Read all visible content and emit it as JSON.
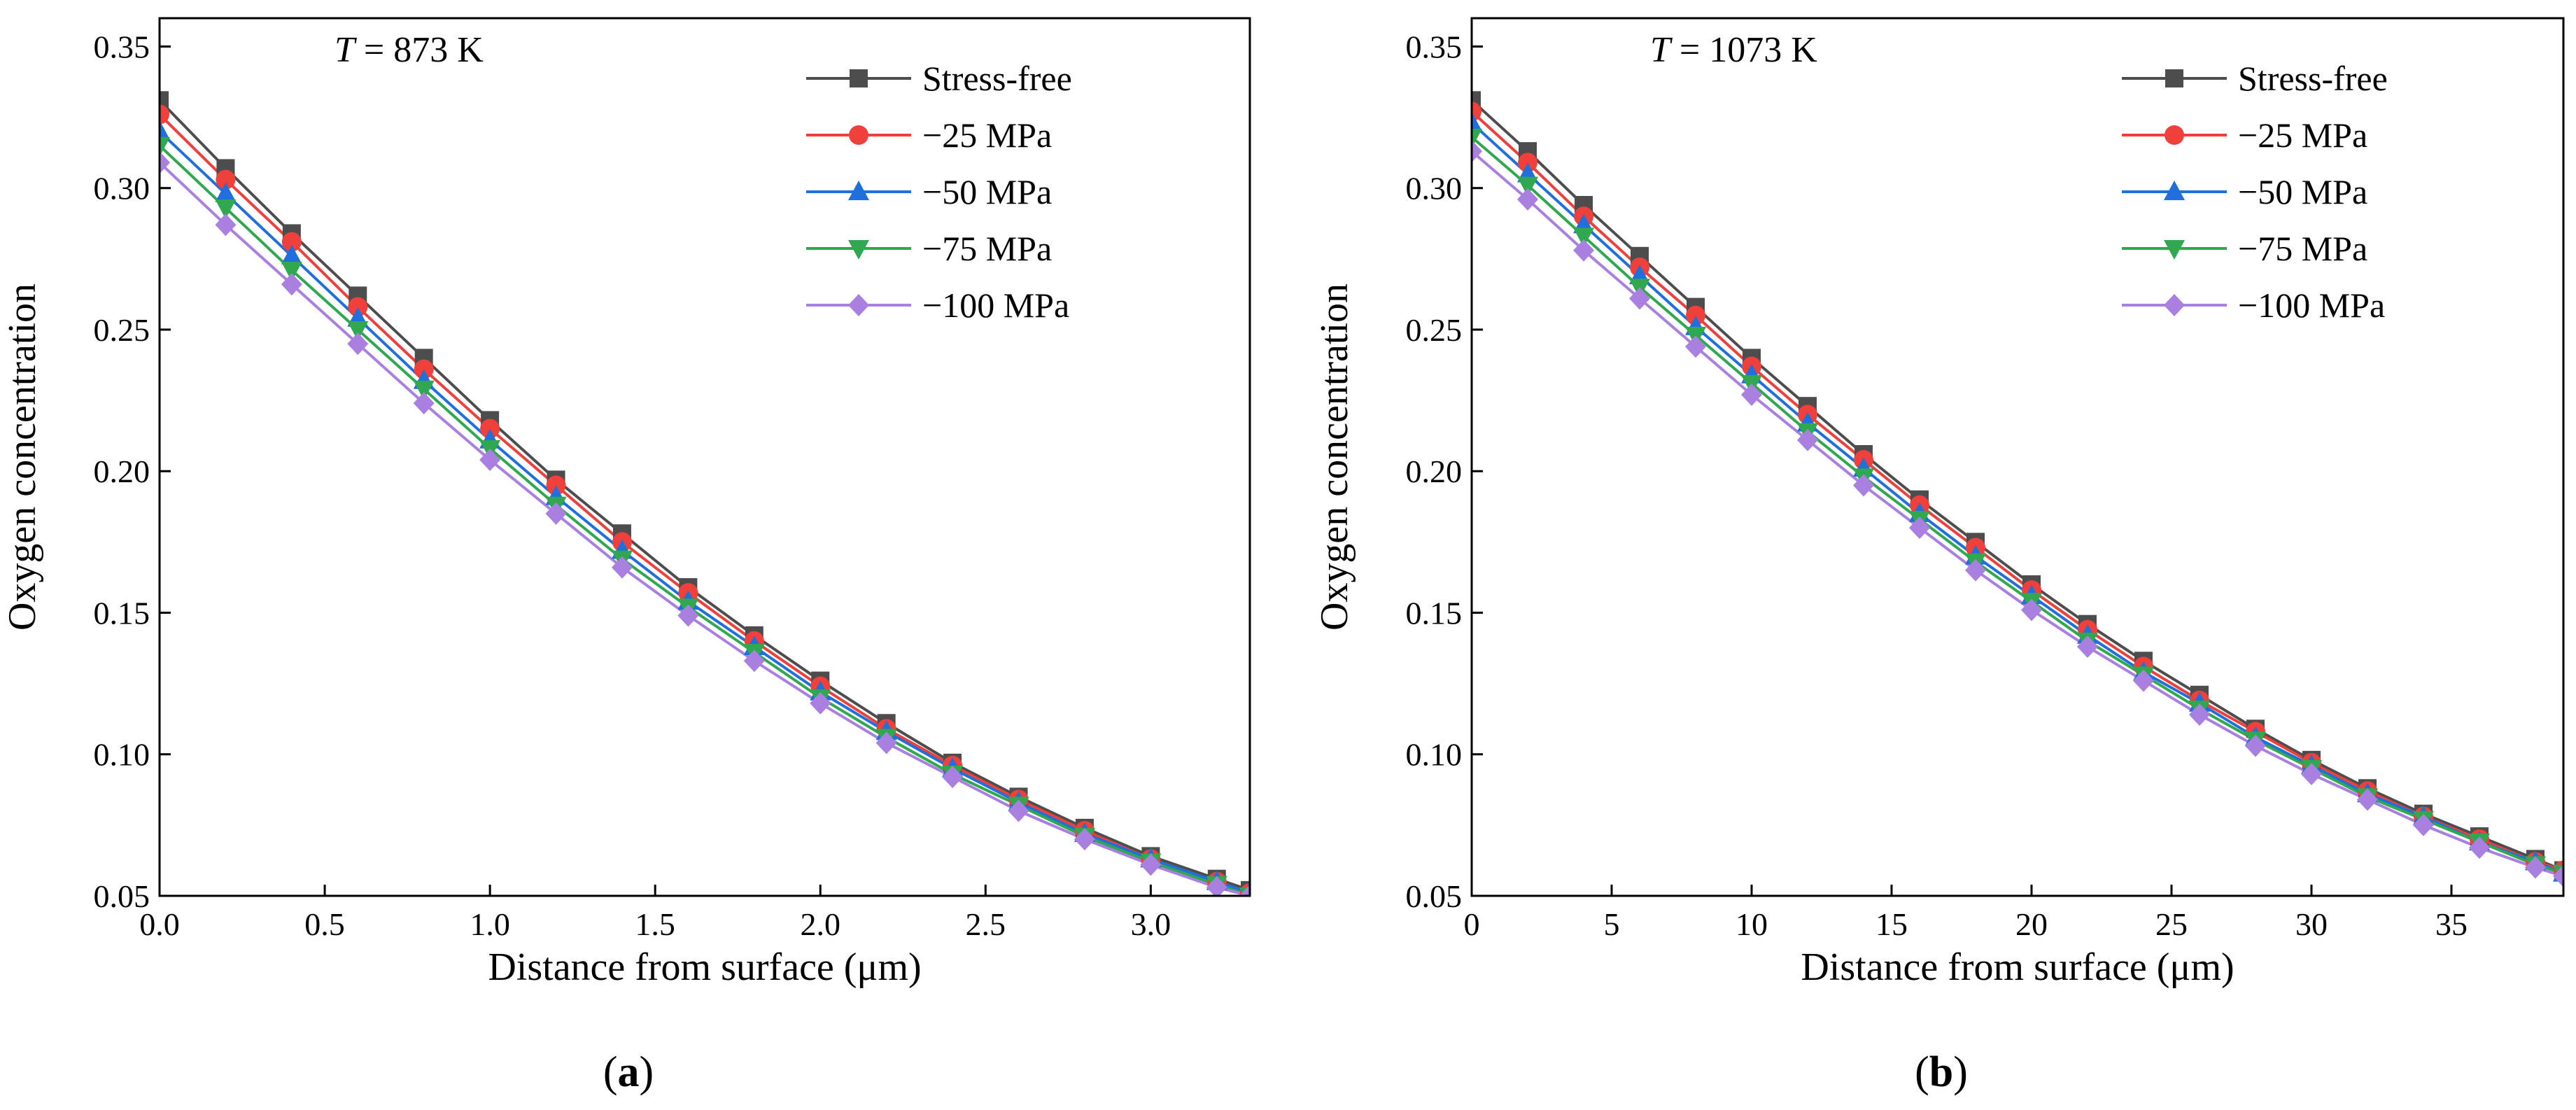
{
  "figure": {
    "panel_labels": [
      "(",
      "a",
      ")",
      "(",
      "b",
      ")"
    ]
  },
  "chart_data": [
    {
      "type": "line",
      "panel": "a",
      "annotation": {
        "italic": "T",
        "rest": " = 873 K"
      },
      "xlabel": "Distance from surface (μm)",
      "ylabel": "Oxygen concentration",
      "xlim": [
        0,
        3.3
      ],
      "ylim": [
        0.05,
        0.36
      ],
      "xticks": [
        0,
        0.5,
        1,
        1.5,
        2,
        2.5,
        3
      ],
      "xtick_labels": [
        "0.0",
        "0.5",
        "1.0",
        "1.5",
        "2.0",
        "2.5",
        "3.0"
      ],
      "yticks": [
        0.05,
        0.1,
        0.15,
        0.2,
        0.25,
        0.3,
        0.35
      ],
      "ytick_labels": [
        "0.05",
        "0.10",
        "0.15",
        "0.20",
        "0.25",
        "0.30",
        "0.35"
      ],
      "legend_position": "top-right",
      "x": [
        0,
        0.2,
        0.4,
        0.6,
        0.8,
        1.0,
        1.2,
        1.4,
        1.6,
        1.8,
        2.0,
        2.2,
        2.4,
        2.6,
        2.8,
        3.0,
        3.2,
        3.3
      ],
      "series": [
        {
          "name": "Stress-free",
          "color": "#4d4d4d",
          "marker": "square",
          "values": [
            0.331,
            0.307,
            0.284,
            0.262,
            0.24,
            0.218,
            0.197,
            0.178,
            0.159,
            0.142,
            0.126,
            0.111,
            0.097,
            0.085,
            0.074,
            0.064,
            0.056,
            0.052
          ]
        },
        {
          "name": "−25 MPa",
          "color": "#f0403b",
          "marker": "circle",
          "values": [
            0.326,
            0.303,
            0.281,
            0.258,
            0.236,
            0.215,
            0.195,
            0.175,
            0.157,
            0.14,
            0.124,
            0.109,
            0.096,
            0.084,
            0.073,
            0.063,
            0.055,
            0.051
          ]
        },
        {
          "name": "−50 MPa",
          "color": "#1f6fdc",
          "marker": "triangle-up",
          "values": [
            0.32,
            0.298,
            0.276,
            0.254,
            0.232,
            0.211,
            0.191,
            0.172,
            0.154,
            0.138,
            0.122,
            0.108,
            0.095,
            0.083,
            0.072,
            0.063,
            0.055,
            0.051
          ]
        },
        {
          "name": "−75 MPa",
          "color": "#2fa84f",
          "marker": "triangle-down",
          "values": [
            0.315,
            0.293,
            0.271,
            0.25,
            0.229,
            0.208,
            0.188,
            0.169,
            0.152,
            0.136,
            0.12,
            0.106,
            0.093,
            0.082,
            0.071,
            0.062,
            0.054,
            0.05
          ]
        },
        {
          "name": "−100 MPa",
          "color": "#a97fe0",
          "marker": "diamond",
          "values": [
            0.309,
            0.287,
            0.266,
            0.245,
            0.224,
            0.204,
            0.185,
            0.166,
            0.149,
            0.133,
            0.118,
            0.104,
            0.092,
            0.08,
            0.07,
            0.061,
            0.053,
            0.05
          ]
        }
      ]
    },
    {
      "type": "line",
      "panel": "b",
      "annotation": {
        "italic": "T",
        "rest": " = 1073 K"
      },
      "xlabel": "Distance from surface (μm)",
      "ylabel": "Oxygen concentration",
      "xlim": [
        0,
        39
      ],
      "ylim": [
        0.05,
        0.36
      ],
      "xticks": [
        0,
        5,
        10,
        15,
        20,
        25,
        30,
        35
      ],
      "xtick_labels": [
        "0",
        "5",
        "10",
        "15",
        "20",
        "25",
        "30",
        "35"
      ],
      "yticks": [
        0.05,
        0.1,
        0.15,
        0.2,
        0.25,
        0.3,
        0.35
      ],
      "ytick_labels": [
        "0.05",
        "0.10",
        "0.15",
        "0.20",
        "0.25",
        "0.30",
        "0.35"
      ],
      "legend_position": "top-right",
      "x": [
        0,
        2,
        4,
        6,
        8,
        10,
        12,
        14,
        16,
        18,
        20,
        22,
        24,
        26,
        28,
        30,
        32,
        34,
        36,
        38,
        39
      ],
      "series": [
        {
          "name": "Stress-free",
          "color": "#4d4d4d",
          "marker": "square",
          "values": [
            0.331,
            0.313,
            0.294,
            0.276,
            0.258,
            0.24,
            0.223,
            0.206,
            0.19,
            0.175,
            0.16,
            0.146,
            0.133,
            0.121,
            0.109,
            0.098,
            0.088,
            0.079,
            0.071,
            0.063,
            0.059
          ]
        },
        {
          "name": "−25 MPa",
          "color": "#f0403b",
          "marker": "circle",
          "values": [
            0.327,
            0.309,
            0.29,
            0.272,
            0.255,
            0.237,
            0.22,
            0.204,
            0.188,
            0.173,
            0.158,
            0.144,
            0.131,
            0.119,
            0.108,
            0.097,
            0.087,
            0.078,
            0.07,
            0.062,
            0.059
          ]
        },
        {
          "name": "−50 MPa",
          "color": "#1f6fdc",
          "marker": "triangle-up",
          "values": [
            0.323,
            0.305,
            0.287,
            0.269,
            0.251,
            0.234,
            0.217,
            0.201,
            0.185,
            0.17,
            0.156,
            0.142,
            0.129,
            0.118,
            0.106,
            0.096,
            0.086,
            0.078,
            0.069,
            0.062,
            0.058
          ]
        },
        {
          "name": "−75 MPa",
          "color": "#2fa84f",
          "marker": "triangle-down",
          "values": [
            0.318,
            0.301,
            0.283,
            0.265,
            0.248,
            0.231,
            0.214,
            0.198,
            0.183,
            0.168,
            0.154,
            0.14,
            0.128,
            0.116,
            0.105,
            0.095,
            0.085,
            0.077,
            0.069,
            0.061,
            0.058
          ]
        },
        {
          "name": "−100 MPa",
          "color": "#a97fe0",
          "marker": "diamond",
          "values": [
            0.313,
            0.296,
            0.278,
            0.261,
            0.244,
            0.227,
            0.211,
            0.195,
            0.18,
            0.165,
            0.151,
            0.138,
            0.126,
            0.114,
            0.103,
            0.093,
            0.084,
            0.075,
            0.067,
            0.06,
            0.057
          ]
        }
      ]
    }
  ]
}
